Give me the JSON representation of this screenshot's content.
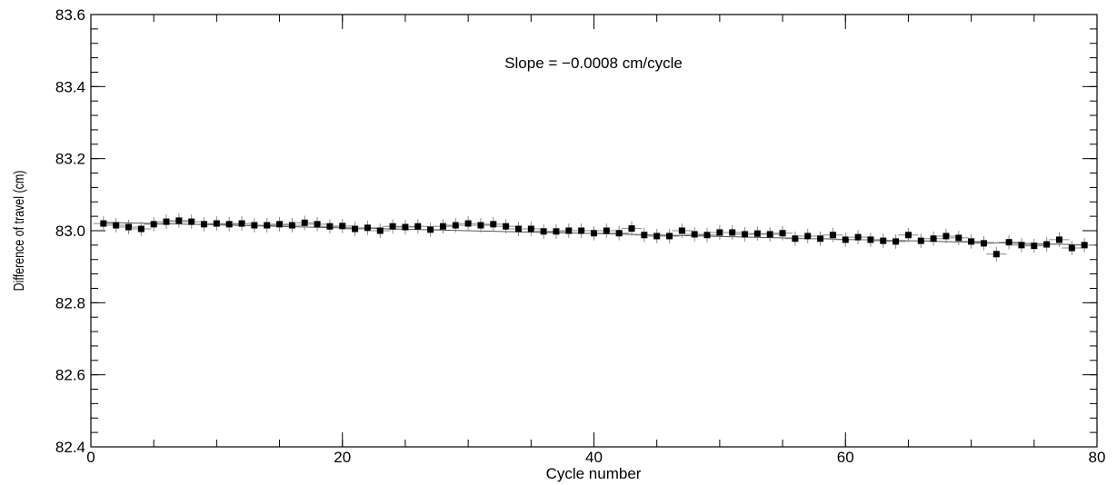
{
  "chart_data": {
    "type": "scatter",
    "title": "",
    "xlabel": "Cycle number",
    "ylabel": "Difference of travel  (cm)",
    "annotation": "Slope = −0.0008 cm/cycle",
    "xlim": [
      0,
      80
    ],
    "ylim": [
      82.4,
      83.6
    ],
    "x_ticks": [
      0,
      20,
      40,
      60,
      80
    ],
    "x_tick_labels": [
      "0",
      "20",
      "40",
      "60",
      "80"
    ],
    "y_ticks": [
      82.4,
      82.6,
      82.8,
      83.0,
      83.2,
      83.4,
      83.6
    ],
    "y_tick_labels": [
      "82.4",
      "82.6",
      "82.8",
      "83.0",
      "83.2",
      "83.4",
      "83.6"
    ],
    "grid": false,
    "error_bars": {
      "x_half_width": 0.8,
      "y_half_width": 0.02
    },
    "fit_line": {
      "slope": -0.0008,
      "intercept": 83.024
    },
    "series": [
      {
        "x": [
          1,
          2,
          3,
          4,
          5,
          6,
          7,
          8,
          9,
          10,
          11,
          12,
          13,
          14,
          15,
          16,
          17,
          18,
          19,
          20,
          21,
          22,
          23,
          24,
          25,
          26,
          27,
          28,
          29,
          30,
          31,
          32,
          33,
          34,
          35,
          36,
          37,
          38,
          39,
          40,
          41,
          42,
          43,
          44,
          45,
          46,
          47,
          48,
          49,
          50,
          51,
          52,
          53,
          54,
          55,
          56,
          57,
          58,
          59,
          60,
          61,
          62,
          63,
          64,
          65,
          66,
          67,
          68,
          69,
          70,
          71,
          72,
          73,
          74,
          75,
          76,
          77,
          78,
          79
        ],
        "y": [
          83.02,
          83.015,
          83.01,
          83.005,
          83.018,
          83.025,
          83.028,
          83.025,
          83.018,
          83.02,
          83.018,
          83.02,
          83.015,
          83.015,
          83.018,
          83.015,
          83.022,
          83.018,
          83.012,
          83.013,
          83.005,
          83.008,
          83.0,
          83.012,
          83.01,
          83.012,
          83.003,
          83.012,
          83.015,
          83.02,
          83.015,
          83.018,
          83.012,
          83.005,
          83.005,
          82.998,
          82.998,
          83.0,
          83.0,
          82.993,
          83.0,
          82.993,
          83.006,
          82.988,
          82.985,
          82.985,
          83.0,
          82.99,
          82.988,
          82.995,
          82.995,
          82.99,
          82.992,
          82.99,
          82.993,
          82.978,
          82.985,
          82.978,
          82.988,
          82.975,
          82.982,
          82.975,
          82.972,
          82.97,
          82.988,
          82.972,
          82.978,
          82.985,
          82.98,
          82.97,
          82.965,
          82.935,
          82.968,
          82.96,
          82.958,
          82.962,
          82.975,
          82.952,
          82.96
        ]
      }
    ]
  }
}
